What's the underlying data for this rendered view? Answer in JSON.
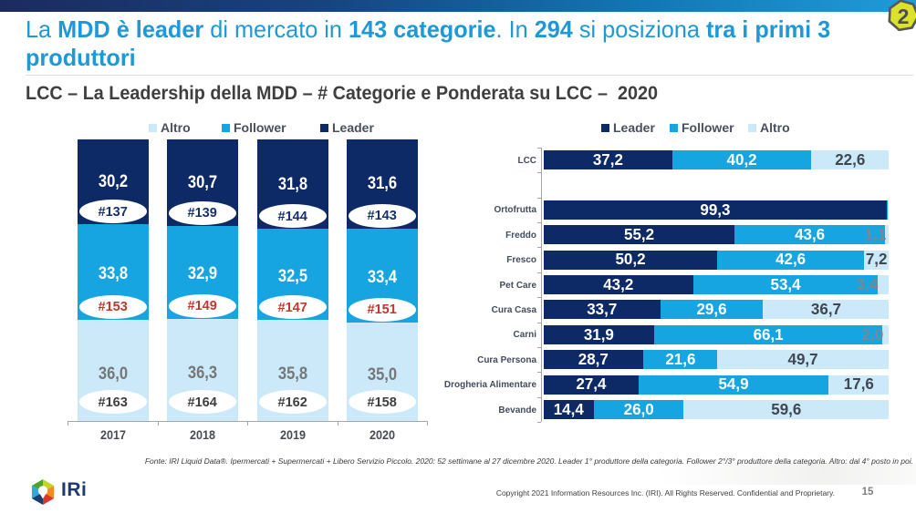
{
  "slide": {
    "badge_number": "2",
    "page_number": "15",
    "logo_text": "IRi"
  },
  "header": {
    "title_runs": [
      {
        "t": "La ",
        "b": 0
      },
      {
        "t": "MDD è leader",
        "b": 1
      },
      {
        "t": " di mercato in ",
        "b": 0
      },
      {
        "t": "143 categorie",
        "b": 1
      },
      {
        "t": ". In ",
        "b": 0
      },
      {
        "t": "294",
        "b": 1
      },
      {
        "t": " si posiziona ",
        "b": 0
      },
      {
        "t": "tra i primi 3 produttori",
        "b": 1
      }
    ],
    "subtitle": "LCC – La Leadership della MDD – # Categorie e Ponderata su LCC –  2020"
  },
  "colors": {
    "leader": "#0e2a66",
    "follower": "#16a5e1",
    "altro": "#cbe9f9",
    "title_blue": "#1e99d6",
    "count_navy": "#17316e",
    "count_red": "#be3a2d",
    "count_dark": "#3e3e3e"
  },
  "chart_data": [
    {
      "type": "bar",
      "subtype": "stacked-column-100",
      "title": "",
      "legend": [
        "Altro",
        "Follower",
        "Leader"
      ],
      "legend_position": "top",
      "categories": [
        "2017",
        "2018",
        "2019",
        "2020"
      ],
      "series": [
        {
          "name": "Leader",
          "values": [
            30.2,
            30.7,
            31.8,
            31.6
          ],
          "labels": [
            "30,2",
            "30,7",
            "31,8",
            "31,6"
          ],
          "counts": [
            "#137",
            "#139",
            "#144",
            "#143"
          ],
          "count_color": "count_navy",
          "label_style": "white"
        },
        {
          "name": "Follower",
          "values": [
            33.8,
            32.9,
            32.5,
            33.4
          ],
          "labels": [
            "33,8",
            "32,9",
            "32,5",
            "33,4"
          ],
          "counts": [
            "#153",
            "#149",
            "#147",
            "#151"
          ],
          "count_color": "count_red",
          "label_style": "white"
        },
        {
          "name": "Altro",
          "values": [
            36.0,
            36.3,
            35.8,
            35.0
          ],
          "labels": [
            "36,0",
            "36,3",
            "35,8",
            "35,0"
          ],
          "counts": [
            "#163",
            "#164",
            "#162",
            "#158"
          ],
          "count_color": "count_dark",
          "label_style": "ltgray"
        }
      ]
    },
    {
      "type": "bar",
      "subtype": "stacked-bar-100",
      "title": "",
      "legend": [
        "Leader",
        "Follower",
        "Altro"
      ],
      "legend_position": "top",
      "series_names": [
        "Leader",
        "Follower",
        "Altro"
      ],
      "rows": [
        {
          "label": "LCC",
          "values": [
            37.2,
            40.2,
            22.6
          ],
          "labels": [
            "37,2",
            "40,2",
            "22,6"
          ],
          "slot": 0
        },
        {
          "label": "Ortofrutta",
          "values": [
            99.3,
            0.4,
            0.3
          ],
          "labels": [
            "99,3",
            "",
            ""
          ],
          "slot": 2
        },
        {
          "label": "Freddo",
          "values": [
            55.2,
            43.6,
            1.1
          ],
          "labels": [
            "55,2",
            "43,6",
            "1,1"
          ],
          "slot": 3
        },
        {
          "label": "Fresco",
          "values": [
            50.2,
            42.6,
            7.2
          ],
          "labels": [
            "50,2",
            "42,6",
            "7,2"
          ],
          "slot": 4
        },
        {
          "label": "Pet Care",
          "values": [
            43.2,
            53.4,
            3.4
          ],
          "labels": [
            "43,2",
            "53,4",
            "3,4"
          ],
          "slot": 5
        },
        {
          "label": "Cura Casa",
          "values": [
            33.7,
            29.6,
            36.7
          ],
          "labels": [
            "33,7",
            "29,6",
            "36,7"
          ],
          "slot": 6
        },
        {
          "label": "Carni",
          "values": [
            31.9,
            66.1,
            2.0
          ],
          "labels": [
            "31,9",
            "66,1",
            "2,0"
          ],
          "slot": 7
        },
        {
          "label": "Cura Persona",
          "values": [
            28.7,
            21.6,
            49.7
          ],
          "labels": [
            "28,7",
            "21,6",
            "49,7"
          ],
          "slot": 8
        },
        {
          "label": "Drogheria Alimentare",
          "values": [
            27.4,
            54.9,
            17.6
          ],
          "labels": [
            "27,4",
            "54,9",
            "17,6"
          ],
          "slot": 9
        },
        {
          "label": "Bevande",
          "values": [
            14.4,
            26.0,
            59.6
          ],
          "labels": [
            "14,4",
            "26,0",
            "59,6"
          ],
          "slot": 10
        }
      ]
    }
  ],
  "footer": {
    "fonte": "Fonte: IRI Liquid Data®. Ipermercati + Supermercati + Libero Servizio Piccolo. 2020: 52 settimane al 27 dicembre 2020. Leader 1° produttore della categoria. Follower 2°/3° produttore della categoria. Altro: dal 4° posto in poi.",
    "copyright": "Copyright 2021 Information Resources Inc. (IRI). All Rights Reserved. Confidential and Proprietary."
  }
}
